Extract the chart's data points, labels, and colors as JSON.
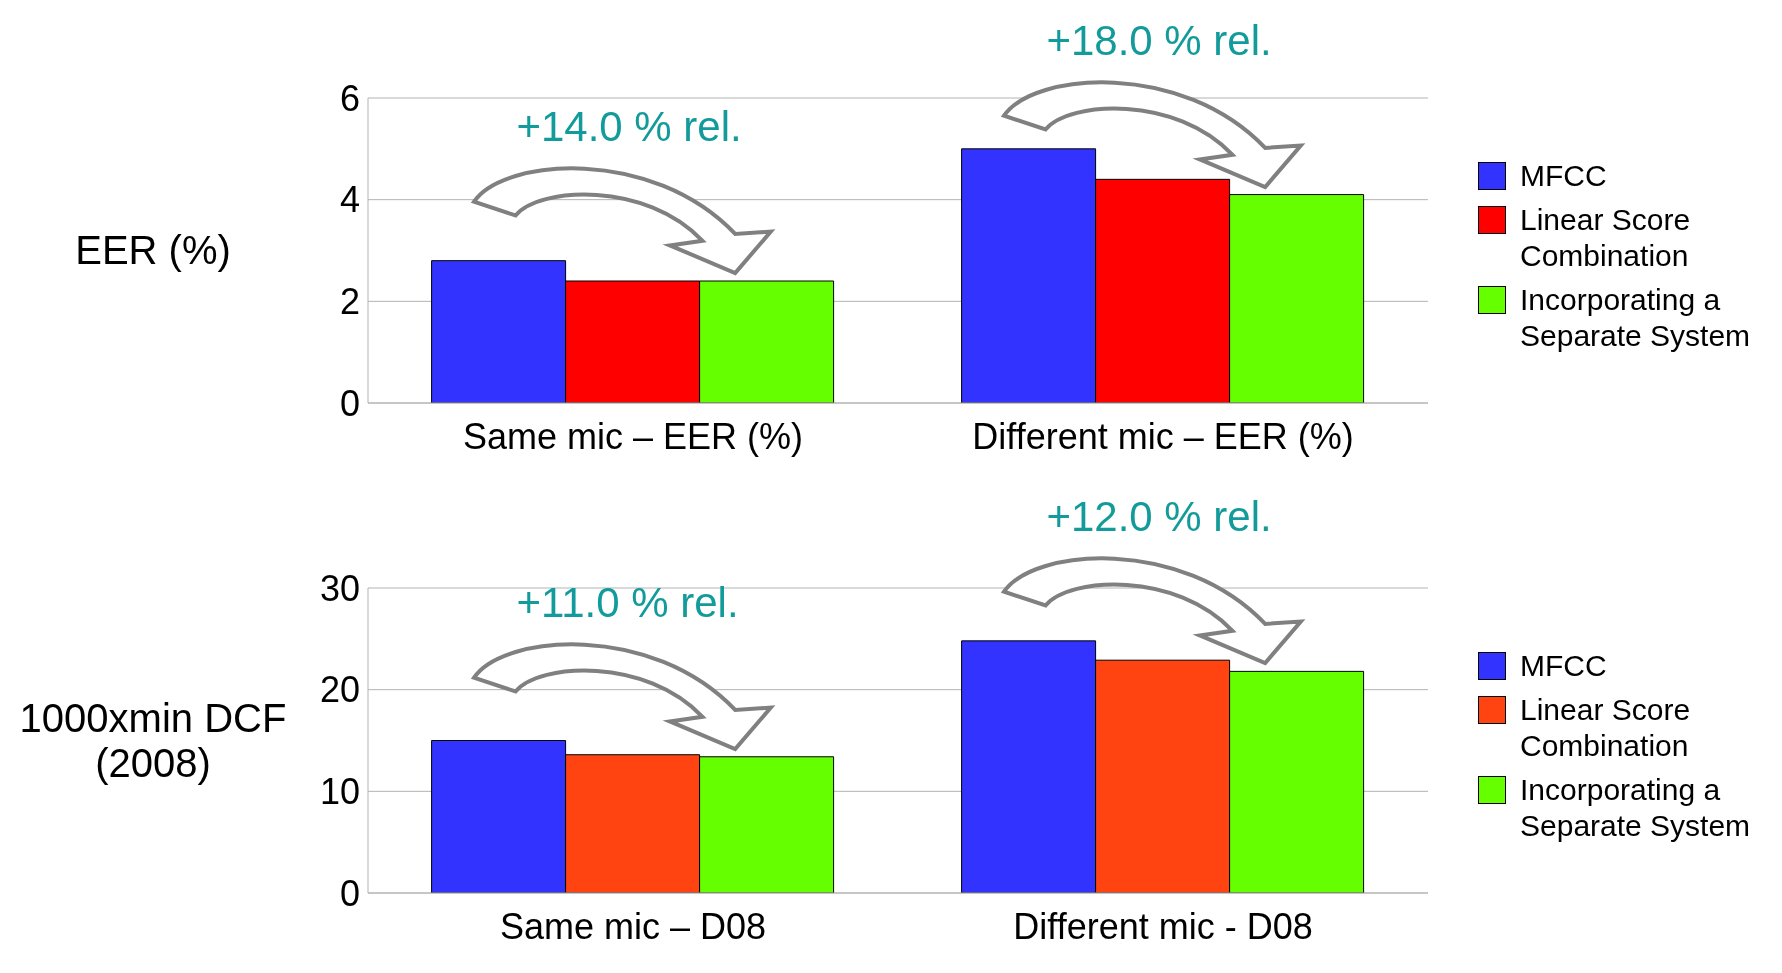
{
  "chart_data": [
    {
      "type": "bar",
      "ylabel": "EER (%)",
      "categories": [
        "Same mic – EER (%)",
        "Different mic – EER (%)"
      ],
      "series": [
        {
          "name": "MFCC",
          "color": "#3333ff",
          "values": [
            2.8,
            5.0
          ]
        },
        {
          "name": "Linear Score Combination",
          "color": "#ff0000",
          "values": [
            2.4,
            4.4
          ]
        },
        {
          "name": "Incorporating a Separate System",
          "color": "#66ff00",
          "values": [
            2.4,
            4.1
          ]
        }
      ],
      "ylim": [
        0,
        6
      ],
      "yticks": [
        0,
        2,
        4,
        6
      ],
      "grid": "y",
      "legend": "right",
      "annotations": [
        "+14.0 % rel.",
        "+18.0 % rel."
      ]
    },
    {
      "type": "bar",
      "ylabel": "1000xmin DCF (2008)",
      "categories": [
        "Same mic – D08",
        "Different mic - D08"
      ],
      "series": [
        {
          "name": "MFCC",
          "color": "#3333ff",
          "values": [
            15.0,
            24.8
          ]
        },
        {
          "name": "Linear Score Combination",
          "color": "#ff4411",
          "values": [
            13.6,
            22.9
          ]
        },
        {
          "name": "Incorporating a Separate System",
          "color": "#66ff00",
          "values": [
            13.4,
            21.8
          ]
        }
      ],
      "ylim": [
        0,
        30
      ],
      "yticks": [
        0,
        10,
        20,
        30
      ],
      "grid": "y",
      "legend": "right",
      "annotations": [
        "+11.0 % rel.",
        "+12.0 % rel."
      ]
    }
  ]
}
